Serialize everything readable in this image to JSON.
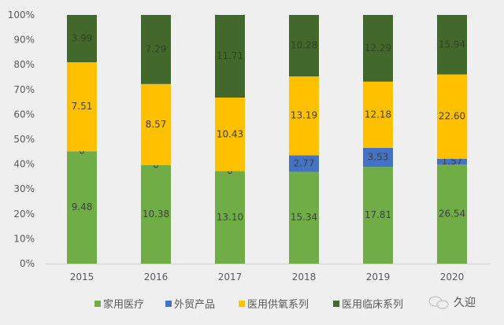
{
  "chart_data": {
    "type": "bar",
    "stacked": "percent",
    "title": "",
    "xlabel": "",
    "ylabel": "",
    "ylim": [
      0,
      100
    ],
    "yticks": [
      "0%",
      "10%",
      "20%",
      "30%",
      "40%",
      "50%",
      "60%",
      "70%",
      "80%",
      "90%",
      "100%"
    ],
    "categories": [
      "2015",
      "2016",
      "2017",
      "2018",
      "2019",
      "2020"
    ],
    "series": [
      {
        "name": "家用医疗",
        "color": "#70ad47",
        "label_color": "#404040",
        "values": [
          9.48,
          10.38,
          13.1,
          15.34,
          17.81,
          26.54
        ],
        "labels": [
          "9.48",
          "10.38",
          "13.10",
          "15.34",
          "17.81",
          "26.54"
        ]
      },
      {
        "name": "外贸产品",
        "color": "#4472c4",
        "label_color": "#404040",
        "values": [
          0,
          0,
          0,
          2.77,
          3.53,
          1.57
        ],
        "labels": [
          "0",
          "0",
          "0",
          "2.77",
          "3.53",
          "1.57"
        ]
      },
      {
        "name": "医用供氧系列",
        "color": "#ffc000",
        "label_color": "#404040",
        "values": [
          7.51,
          8.57,
          10.43,
          13.19,
          12.18,
          22.6
        ],
        "labels": [
          "7.51",
          "8.57",
          "10.43",
          "13.19",
          "12.18",
          "22.60"
        ]
      },
      {
        "name": "医用临床系列",
        "color": "#43682b",
        "label_color": "#2e4420",
        "values": [
          3.99,
          7.29,
          11.71,
          10.28,
          12.29,
          15.94
        ],
        "labels": [
          "3.99",
          "7.29",
          "11.71",
          "10.28",
          "12.29",
          "15.94"
        ]
      }
    ],
    "legend_position": "bottom",
    "grid": false
  },
  "watermark": "久迎"
}
